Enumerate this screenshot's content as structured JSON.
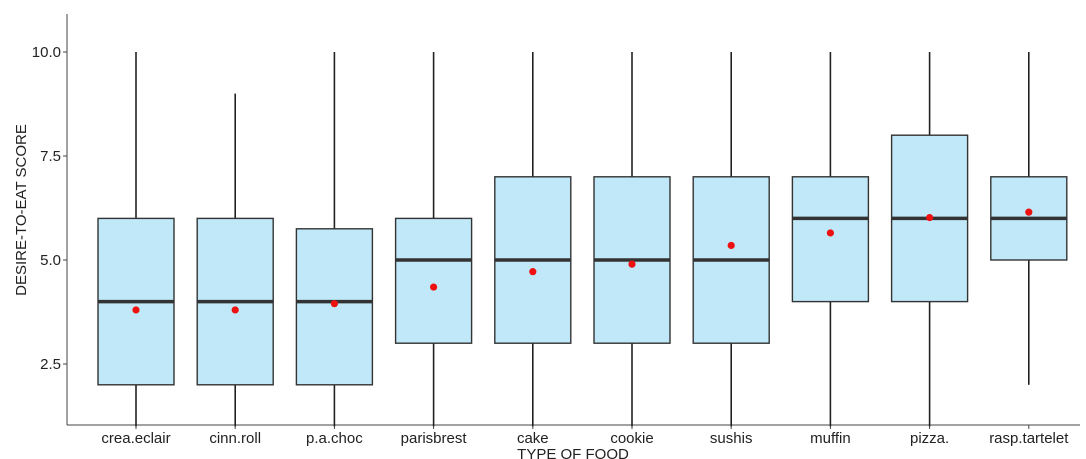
{
  "chart_data": {
    "type": "boxplot",
    "title": "",
    "xlabel": "TYPE OF FOOD",
    "ylabel": "DESIRE-TO-EAT SCORE",
    "ylim": [
      1.0,
      10.9
    ],
    "yticks": [
      2.5,
      5.0,
      7.5,
      10.0
    ],
    "ytick_labels": [
      "2.5",
      "5.0",
      "7.5",
      "10.0"
    ],
    "grid": false,
    "legend": "none",
    "colors": {
      "box_fill": "#c0e8f8",
      "box_stroke": "#333333",
      "median": "#333333",
      "mean_point": "#ee1111",
      "whisker": "#222222"
    },
    "categories": [
      "crea.eclair",
      "cinn.roll",
      "p.a.choc",
      "parisbrest",
      "cake",
      "cookie",
      "sushis",
      "muffin",
      "pizza.",
      "rasp.tartelet"
    ],
    "boxes": [
      {
        "whisker_low": 1.0,
        "q1": 2.0,
        "median": 4.0,
        "q3": 6.0,
        "whisker_high": 10.0,
        "mean": 3.8
      },
      {
        "whisker_low": 1.0,
        "q1": 2.0,
        "median": 4.0,
        "q3": 6.0,
        "whisker_high": 9.0,
        "mean": 3.8
      },
      {
        "whisker_low": 1.0,
        "q1": 2.0,
        "median": 4.0,
        "q3": 5.75,
        "whisker_high": 10.0,
        "mean": 3.95
      },
      {
        "whisker_low": 1.0,
        "q1": 3.0,
        "median": 5.0,
        "q3": 6.0,
        "whisker_high": 10.0,
        "mean": 4.35
      },
      {
        "whisker_low": 1.0,
        "q1": 3.0,
        "median": 5.0,
        "q3": 7.0,
        "whisker_high": 10.0,
        "mean": 4.72
      },
      {
        "whisker_low": 1.0,
        "q1": 3.0,
        "median": 5.0,
        "q3": 7.0,
        "whisker_high": 10.0,
        "mean": 4.9
      },
      {
        "whisker_low": 1.0,
        "q1": 3.0,
        "median": 5.0,
        "q3": 7.0,
        "whisker_high": 10.0,
        "mean": 5.35
      },
      {
        "whisker_low": 1.0,
        "q1": 4.0,
        "median": 6.0,
        "q3": 7.0,
        "whisker_high": 10.0,
        "mean": 5.65
      },
      {
        "whisker_low": 1.0,
        "q1": 4.0,
        "median": 6.0,
        "q3": 8.0,
        "whisker_high": 10.0,
        "mean": 6.02
      },
      {
        "whisker_low": 2.0,
        "q1": 5.0,
        "median": 6.0,
        "q3": 7.0,
        "whisker_high": 10.0,
        "mean": 6.15
      }
    ]
  }
}
